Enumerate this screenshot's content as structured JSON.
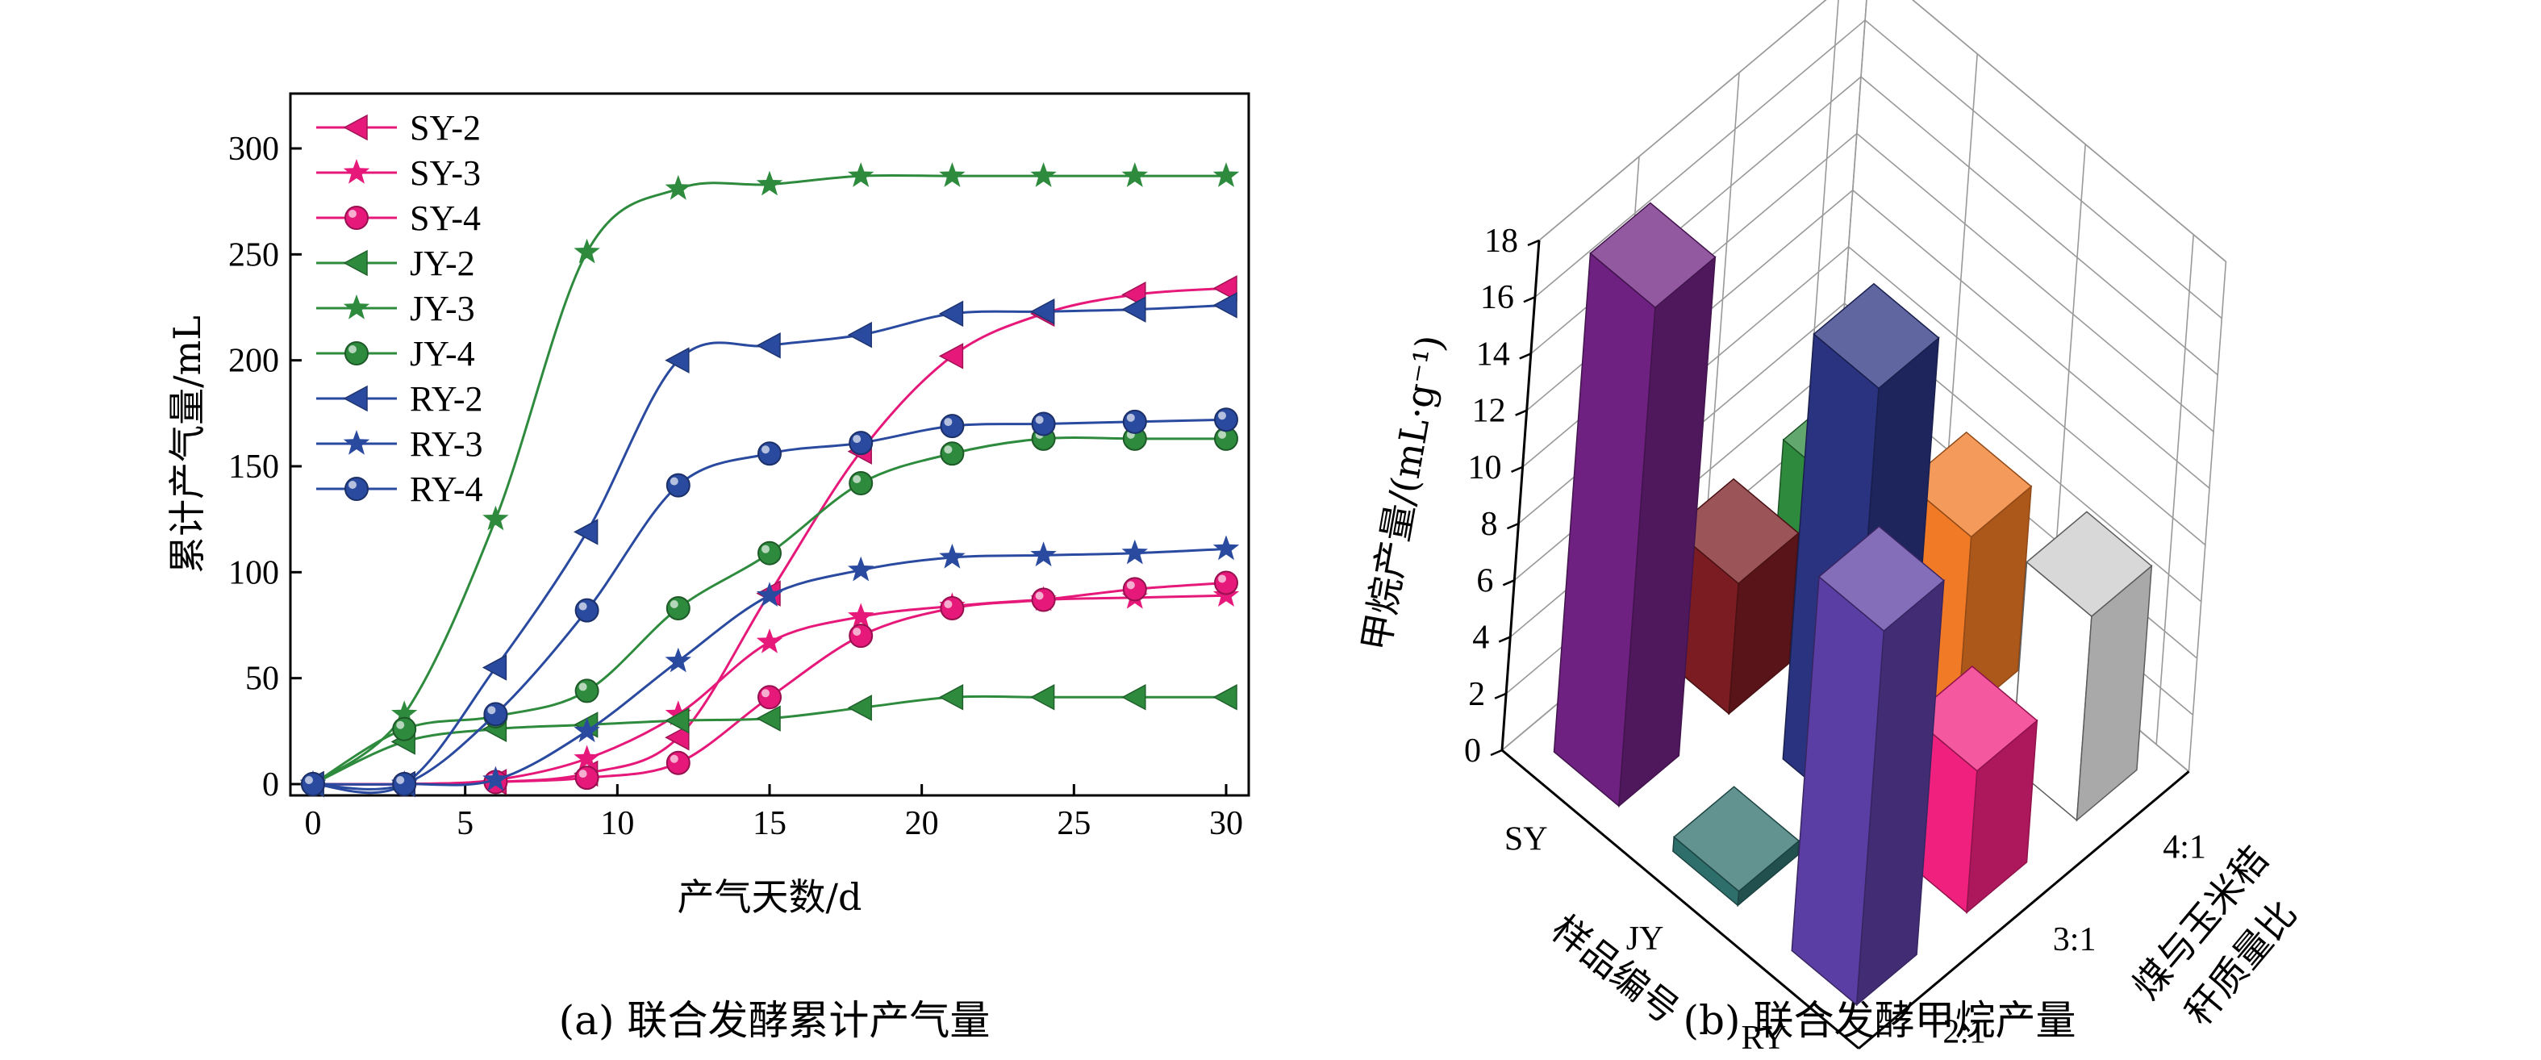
{
  "chart_data": [
    {
      "type": "line",
      "caption": "(a) 联合发酵累计产气量",
      "xlabel": "产气天数/d",
      "ylabel": "累计产气量/mL",
      "xlim": [
        0,
        30
      ],
      "ylim": [
        0,
        320
      ],
      "xticks": [
        "0",
        "5",
        "10",
        "15",
        "20",
        "25",
        "30"
      ],
      "yticks": [
        "0",
        "50",
        "100",
        "150",
        "200",
        "250",
        "300"
      ],
      "legend_position": "top-left",
      "x": [
        0,
        3,
        6,
        9,
        12,
        15,
        18,
        21,
        24,
        27,
        30
      ],
      "series": [
        {
          "name": "SY-2",
          "marker": "triangle-left",
          "color": "#e6197a",
          "values": [
            0,
            0,
            1,
            5,
            22,
            90,
            157,
            202,
            222,
            231,
            234
          ]
        },
        {
          "name": "SY-3",
          "marker": "star",
          "color": "#e6197a",
          "values": [
            0,
            0,
            2,
            12,
            33,
            67,
            79,
            84,
            87,
            88,
            89
          ]
        },
        {
          "name": "SY-4",
          "marker": "sphere",
          "color": "#e6197a",
          "values": [
            0,
            0,
            1,
            3,
            10,
            41,
            70,
            83,
            87,
            92,
            95
          ]
        },
        {
          "name": "JY-2",
          "marker": "triangle-left",
          "color": "#2e8b3e",
          "values": [
            0,
            20,
            26,
            28,
            30,
            31,
            36,
            41,
            41,
            41,
            41
          ]
        },
        {
          "name": "JY-3",
          "marker": "star",
          "color": "#2e8b3e",
          "values": [
            0,
            33,
            125,
            251,
            281,
            283,
            287,
            287,
            287,
            287,
            287
          ]
        },
        {
          "name": "JY-4",
          "marker": "sphere",
          "color": "#2e8b3e",
          "values": [
            0,
            26,
            32,
            44,
            83,
            109,
            142,
            156,
            163,
            163,
            163
          ]
        },
        {
          "name": "RY-2",
          "marker": "triangle-left",
          "color": "#2a4aa0",
          "values": [
            0,
            0,
            55,
            119,
            200,
            207,
            212,
            222,
            223,
            224,
            226
          ]
        },
        {
          "name": "RY-3",
          "marker": "star",
          "color": "#2a4aa0",
          "values": [
            0,
            0,
            2,
            25,
            58,
            89,
            101,
            107,
            108,
            109,
            111
          ]
        },
        {
          "name": "RY-4",
          "marker": "sphere",
          "color": "#2a4aa0",
          "values": [
            0,
            0,
            33,
            82,
            141,
            156,
            161,
            169,
            170,
            171,
            172
          ]
        }
      ]
    },
    {
      "type": "bar3d",
      "caption": "(b) 联合发酵甲烷产量",
      "zlabel": "甲烷产量/(mL·g⁻¹)",
      "xlabel": "样品编号",
      "ylabel_line1": "煤与玉米秸",
      "ylabel_line2": "秆质量比",
      "samples": [
        "SY",
        "JY",
        "RY"
      ],
      "ratios": [
        "2:1",
        "3:1",
        "4:1"
      ],
      "zlim": [
        0,
        18
      ],
      "zticks": [
        "0",
        "2",
        "4",
        "6",
        "8",
        "10",
        "12",
        "14",
        "16",
        "18"
      ],
      "bars": [
        {
          "sample": "SY",
          "ratio": "2:1",
          "value": 17.6,
          "color": "#6e2180"
        },
        {
          "sample": "SY",
          "ratio": "3:1",
          "value": 4.6,
          "color": "#7a1c22"
        },
        {
          "sample": "SY",
          "ratio": "4:1",
          "value": 4.5,
          "color": "#2e8b3e"
        },
        {
          "sample": "JY",
          "ratio": "2:1",
          "value": 0.5,
          "color": "#2e6f6c"
        },
        {
          "sample": "JY",
          "ratio": "3:1",
          "value": 15.0,
          "color": "#2a3380"
        },
        {
          "sample": "JY",
          "ratio": "4:1",
          "value": 6.5,
          "color": "#f07a26"
        },
        {
          "sample": "RY",
          "ratio": "2:1",
          "value": 13.2,
          "color": "#5b3ea3"
        },
        {
          "sample": "RY",
          "ratio": "3:1",
          "value": 5.0,
          "color": "#f0207f"
        },
        {
          "sample": "RY",
          "ratio": "4:1",
          "value": 7.2,
          "color": "#ffffff"
        }
      ]
    }
  ]
}
